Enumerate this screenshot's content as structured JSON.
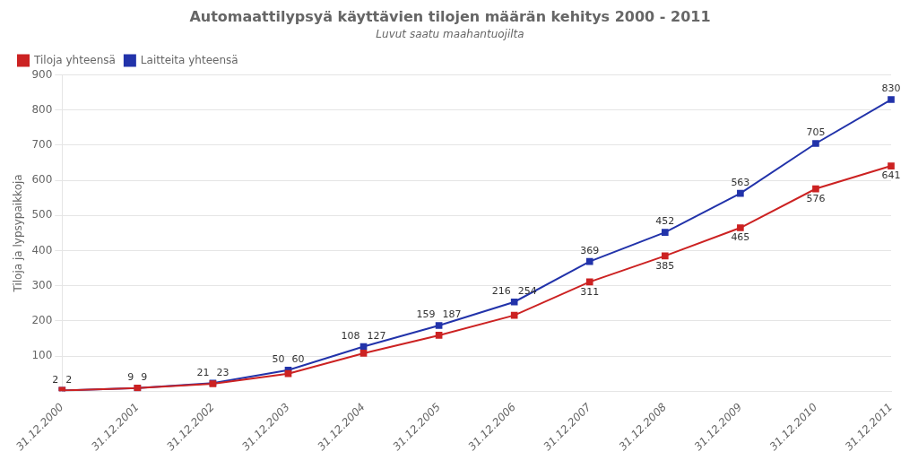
{
  "chart_data": {
    "type": "line",
    "title": "Automaattilypsyä käyttävien tilojen määrän kehitys 2000 - 2011",
    "subtitle": "Luvut saatu maahantuojilta",
    "categories": [
      "31.12.2000",
      "31.12.2001",
      "31.12.2002",
      "31.12.2003",
      "31.12.2004",
      "31.12.2005",
      "31.12.2006",
      "31.12.2007",
      "31.12.2008",
      "31.12.2009",
      "31.12.2010",
      "31.12.2011"
    ],
    "series": [
      {
        "name": "Tiloja yhteensä",
        "color": "#cc2222",
        "marker": "square",
        "values": [
          2,
          9,
          21,
          50,
          108,
          159,
          216,
          311,
          385,
          465,
          576,
          641
        ]
      },
      {
        "name": "Laitteita yhteensä",
        "color": "#2233aa",
        "marker": "square",
        "values": [
          2,
          9,
          23,
          60,
          127,
          187,
          254,
          369,
          452,
          563,
          705,
          830
        ]
      }
    ],
    "ylabel": "Tiloja ja lypsypaikkoja",
    "ylim": [
      0,
      900
    ],
    "yticks": [
      100,
      200,
      300,
      400,
      500,
      600,
      700,
      800,
      900
    ],
    "grid": true,
    "legend": "upper left",
    "data_labels": true
  }
}
